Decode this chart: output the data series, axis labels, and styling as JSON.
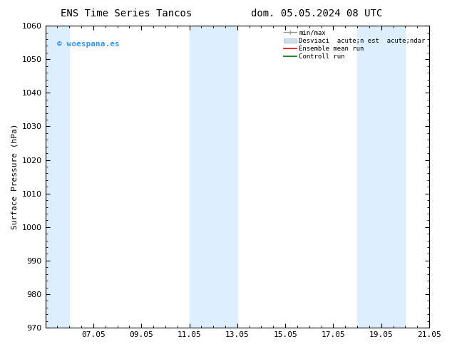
{
  "title_left": "ENS Time Series Tancos",
  "title_right": "dom. 05.05.2024 08 UTC",
  "ylabel": "Surface Pressure (hPa)",
  "ylim": [
    970,
    1060
  ],
  "yticks": [
    970,
    980,
    990,
    1000,
    1010,
    1020,
    1030,
    1040,
    1050,
    1060
  ],
  "xtick_labels": [
    "07.05",
    "09.05",
    "11.05",
    "13.05",
    "15.05",
    "17.05",
    "19.05",
    "21.05"
  ],
  "xtick_positions": [
    2,
    4,
    6,
    8,
    10,
    12,
    14,
    16
  ],
  "xlim": [
    0,
    16
  ],
  "watermark_text": "© woespana.es",
  "watermark_color": "#3399ff",
  "shaded_bands": [
    {
      "x_start": 0,
      "x_end": 1.0,
      "color": "#ddeeff"
    },
    {
      "x_start": 6,
      "x_end": 8,
      "color": "#ddeeff"
    },
    {
      "x_start": 13,
      "x_end": 15,
      "color": "#ddeeff"
    }
  ],
  "legend_label_minmax": "min/max",
  "legend_label_std": "Desviaci  acute;n est  acute;ndar",
  "legend_label_mean": "Ensemble mean run",
  "legend_label_ctrl": "Controll run",
  "bg_color": "#ffffff",
  "band_color": "#ddeeff",
  "title_fontsize": 10,
  "tick_fontsize": 8,
  "ylabel_fontsize": 8
}
